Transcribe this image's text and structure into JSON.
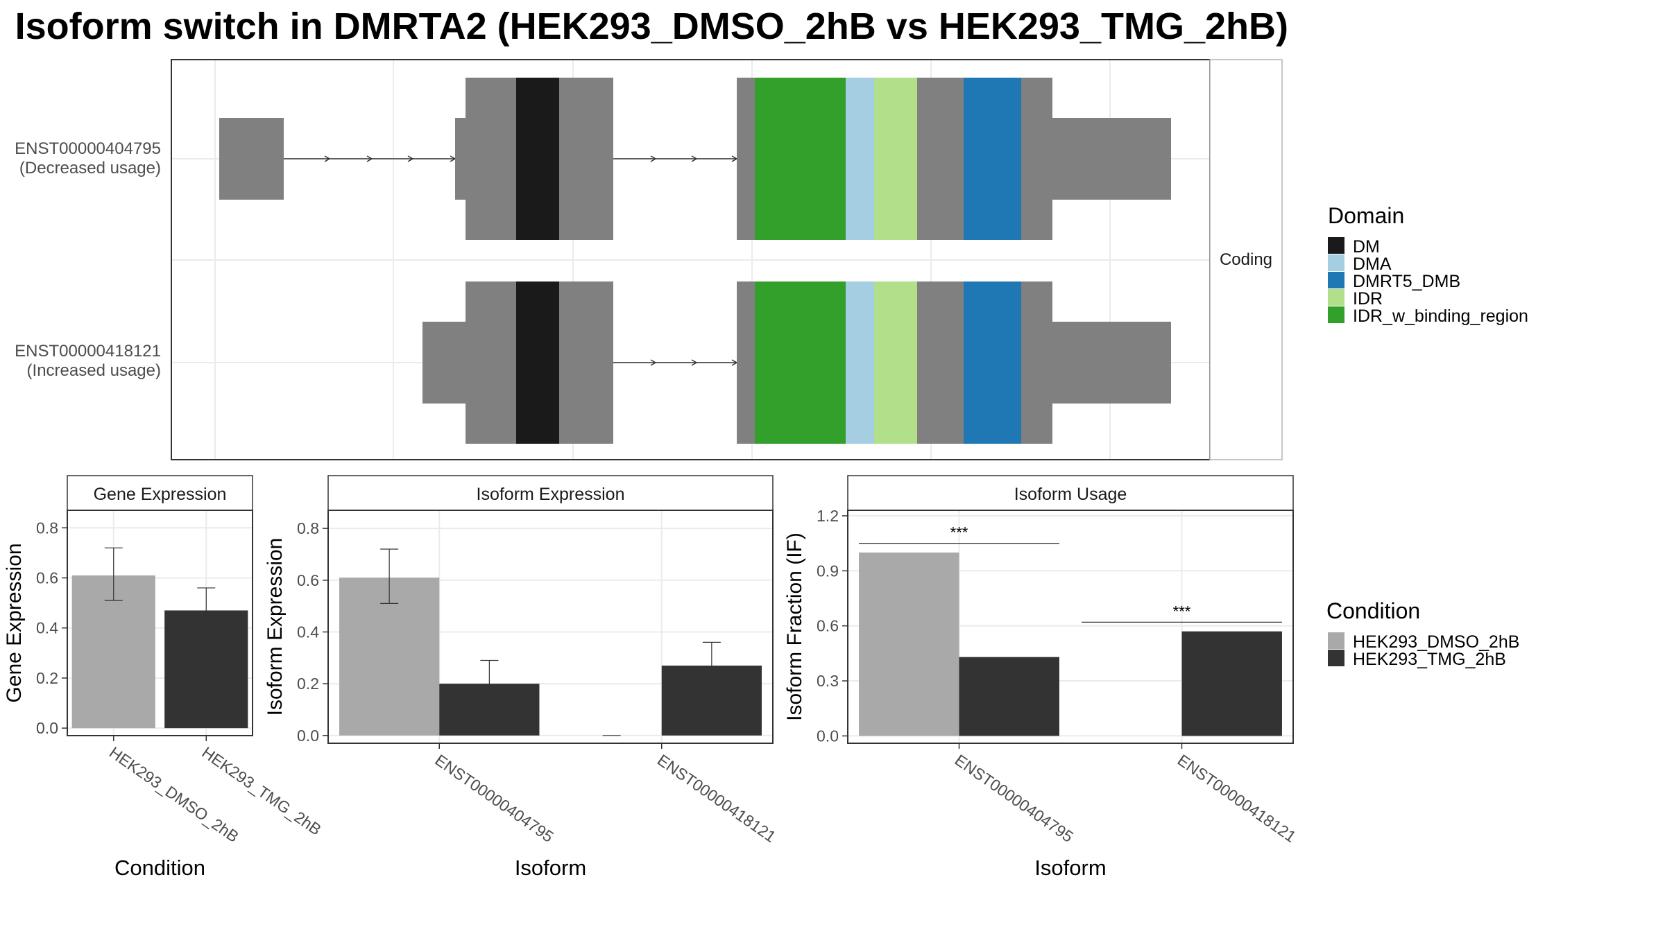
{
  "title": "Isoform switch in DMRTA2 (HEK293_DMSO_2hB vs HEK293_TMG_2hB)",
  "transcripts_panel": {
    "strip": "Coding",
    "transcripts": [
      {
        "id": "ENST00000404795",
        "usage": "(Decreased usage)"
      },
      {
        "id": "ENST00000418121",
        "usage": "(Increased usage)"
      }
    ]
  },
  "domain_legend": {
    "title": "Domain",
    "items": [
      {
        "name": "DM",
        "color": "#1a1a1a"
      },
      {
        "name": "DMA",
        "color": "#a6cee3"
      },
      {
        "name": "DMRT5_DMB",
        "color": "#1f78b4"
      },
      {
        "name": "IDR",
        "color": "#b2df8a"
      },
      {
        "name": "IDR_w_binding_region",
        "color": "#33a02c"
      }
    ]
  },
  "condition_legend": {
    "title": "Condition",
    "items": [
      {
        "name": "HEK293_DMSO_2hB",
        "color": "#a9a9a9"
      },
      {
        "name": "HEK293_TMG_2hB",
        "color": "#333333"
      }
    ]
  },
  "colors": {
    "exon": "#808080",
    "intron": "#333333",
    "grid": "#ebebeb",
    "border": "#333333"
  },
  "chart_data": [
    {
      "type": "bar",
      "title": "Gene Expression",
      "xlabel": "Condition",
      "ylabel": "Gene Expression",
      "ylim": [
        -0.03,
        0.87
      ],
      "yticks": [
        "0.0",
        "0.2",
        "0.4",
        "0.6",
        "0.8"
      ],
      "categories": [
        "HEK293_DMSO_2hB",
        "HEK293_TMG_2hB"
      ],
      "series": [
        {
          "name": "HEK293_DMSO_2hB",
          "values": [
            0.61,
            null
          ]
        },
        {
          "name": "HEK293_TMG_2hB",
          "values": [
            null,
            0.47
          ]
        }
      ],
      "errors": [
        [
          0.51,
          0.72
        ],
        [
          0.38,
          0.56
        ]
      ]
    },
    {
      "type": "bar",
      "title": "Isoform Expression",
      "xlabel": "Isoform",
      "ylabel": "Isoform Expression",
      "ylim": [
        -0.03,
        0.87
      ],
      "yticks": [
        "0.0",
        "0.2",
        "0.4",
        "0.6",
        "0.8"
      ],
      "categories": [
        "ENST00000404795",
        "ENST00000418121"
      ],
      "series": [
        {
          "name": "HEK293_DMSO_2hB",
          "values": [
            0.61,
            0.0
          ],
          "errors": [
            [
              0.51,
              0.72
            ],
            [
              0.0,
              0.0
            ]
          ]
        },
        {
          "name": "HEK293_TMG_2hB",
          "values": [
            0.2,
            0.27
          ],
          "errors": [
            [
              0.12,
              0.29
            ],
            [
              0.18,
              0.36
            ]
          ]
        }
      ]
    },
    {
      "type": "bar",
      "title": "Isoform Usage",
      "xlabel": "Isoform",
      "ylabel": "Isoform Fraction (IF)",
      "ylim": [
        -0.04,
        1.23
      ],
      "yticks": [
        "0.0",
        "0.3",
        "0.6",
        "0.9",
        "1.2"
      ],
      "categories": [
        "ENST00000404795",
        "ENST00000418121"
      ],
      "series": [
        {
          "name": "HEK293_DMSO_2hB",
          "values": [
            1.0,
            0.0
          ]
        },
        {
          "name": "HEK293_TMG_2hB",
          "values": [
            0.43,
            0.57
          ]
        }
      ],
      "significance": [
        "***",
        "***"
      ]
    }
  ]
}
